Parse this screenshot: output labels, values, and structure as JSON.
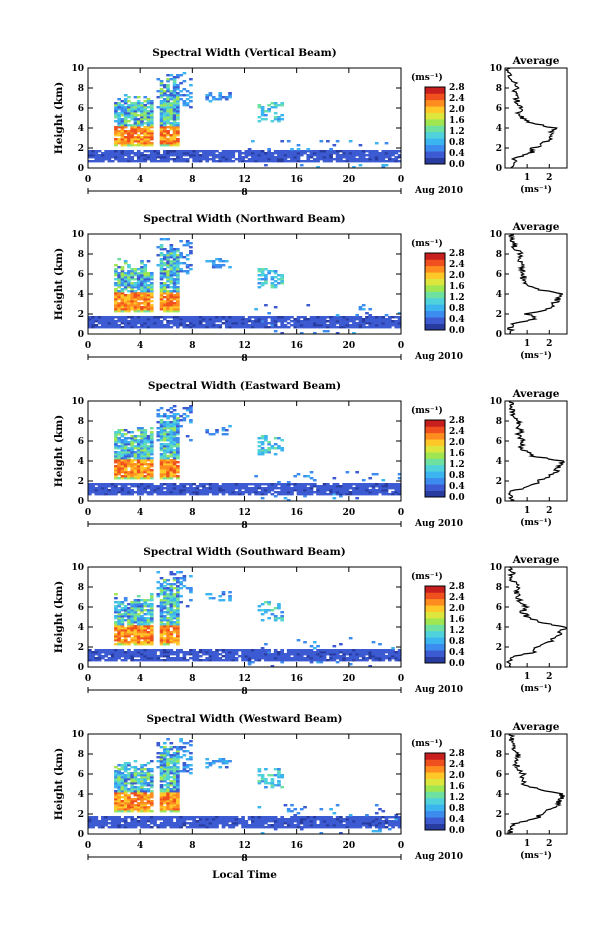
{
  "panels": [
    {
      "title": "Spectral Width (Vertical Beam)",
      "avg_xticks": [
        "1",
        "2"
      ]
    },
    {
      "title": "Spectral Width (Northward Beam)",
      "avg_xticks": [
        "1",
        "2"
      ]
    },
    {
      "title": "Spectral Width (Eastward Beam)",
      "avg_xticks": [
        "1",
        "2"
      ]
    },
    {
      "title": "Spectral Width (Southward Beam)",
      "avg_xticks": [
        "1",
        "2"
      ]
    },
    {
      "title": "Spectral Width (Westward Beam)",
      "avg_xticks": [
        "1",
        "2"
      ]
    }
  ],
  "labels": {
    "ylabel": "Height (km)",
    "colorbar_unit": "(ms⁻¹)",
    "avg_title": "Average",
    "avg_unit": "(ms⁻¹)",
    "date_label": "Aug 2010",
    "day_label": "8",
    "xlabel": "Local Time"
  },
  "colors": {
    "scale": [
      "#283ca0",
      "#3c5ad2",
      "#3c8cf0",
      "#3cb4f0",
      "#50d2dc",
      "#6ee0a0",
      "#a0e650",
      "#dce63c",
      "#ffc828",
      "#ff8c1e",
      "#f0501e",
      "#c81e1e"
    ]
  },
  "chart_data": {
    "type": "heatmap",
    "x_range": [
      0,
      24
    ],
    "y_range": [
      0,
      10
    ],
    "xticks": [
      "0",
      "4",
      "8",
      "12",
      "16",
      "20",
      "0"
    ],
    "yticks": [
      "0",
      "2",
      "4",
      "6",
      "8",
      "10"
    ],
    "colorbar_ticks": [
      "0.0",
      "0.4",
      "0.8",
      "1.2",
      "1.6",
      "2.0",
      "2.4",
      "2.8"
    ],
    "colorbar_range": [
      0,
      2.8
    ],
    "avg_profiles": [
      {
        "beam": "Vertical",
        "height_km": [
          0,
          0.5,
          1,
          1.5,
          2,
          2.5,
          3,
          3.5,
          4,
          4.5,
          5,
          5.5,
          6,
          6.5,
          7,
          7.5,
          8,
          8.5,
          9,
          9.5,
          10
        ],
        "width": [
          0.4,
          0.3,
          0.5,
          1.2,
          1.3,
          1.8,
          2.0,
          2.1,
          2.2,
          1.2,
          0.8,
          0.6,
          0.7,
          0.6,
          0.5,
          0.4,
          0.5,
          0.4,
          0.3,
          0.2,
          0.2
        ]
      },
      {
        "beam": "Northward",
        "height_km": [
          0,
          0.5,
          1,
          1.5,
          2,
          2.5,
          3,
          3.5,
          4,
          4.5,
          5,
          5.5,
          6,
          6.5,
          7,
          7.5,
          8,
          8.5,
          9,
          9.5,
          10
        ],
        "width": [
          0.3,
          0.2,
          0.4,
          1.4,
          1.0,
          1.9,
          2.2,
          2.4,
          2.6,
          1.4,
          0.9,
          0.8,
          0.9,
          0.7,
          0.8,
          0.6,
          0.7,
          0.5,
          0.4,
          0.3,
          0.3
        ]
      },
      {
        "beam": "Eastward",
        "height_km": [
          0,
          0.5,
          1,
          1.5,
          2,
          2.5,
          3,
          3.5,
          4,
          4.5,
          5,
          5.5,
          6,
          6.5,
          7,
          7.5,
          8,
          8.5,
          9,
          9.5,
          10
        ],
        "width": [
          0.3,
          0.2,
          0.3,
          1.2,
          1.5,
          2.0,
          2.3,
          2.5,
          2.6,
          1.3,
          0.9,
          0.7,
          0.8,
          0.6,
          0.7,
          0.5,
          0.6,
          0.4,
          0.3,
          0.3,
          0.2
        ]
      },
      {
        "beam": "Southward",
        "height_km": [
          0,
          0.5,
          1,
          1.5,
          2,
          2.5,
          3,
          3.5,
          4,
          4.5,
          5,
          5.5,
          6,
          6.5,
          7,
          7.5,
          8,
          8.5,
          9,
          9.5,
          10
        ],
        "width": [
          0.3,
          0.2,
          0.4,
          1.3,
          1.4,
          2.0,
          2.3,
          2.5,
          2.7,
          1.5,
          1.0,
          0.8,
          0.9,
          0.7,
          0.6,
          0.5,
          0.6,
          0.4,
          0.3,
          0.3,
          0.3
        ]
      },
      {
        "beam": "Westward",
        "height_km": [
          0,
          0.5,
          1,
          1.5,
          2,
          2.5,
          3,
          3.5,
          4,
          4.5,
          5,
          5.5,
          6,
          6.5,
          7,
          7.5,
          8,
          8.5,
          9,
          9.5,
          10
        ],
        "width": [
          0.3,
          0.2,
          0.4,
          1.4,
          1.6,
          2.1,
          2.4,
          2.5,
          2.6,
          1.4,
          0.9,
          0.7,
          0.8,
          0.6,
          0.5,
          0.5,
          0.6,
          0.4,
          0.3,
          0.3,
          0.2
        ]
      }
    ],
    "avg_x_range": [
      0,
      2.8
    ],
    "features": {
      "convective_cores": [
        {
          "time_hours": [
            2,
            5
          ],
          "height_km": [
            2,
            7.5
          ],
          "max_width": 2.8
        },
        {
          "time_hours": [
            5.5,
            7
          ],
          "height_km": [
            2,
            9
          ],
          "max_width": 2.8
        }
      ],
      "boundary_layer": {
        "time_hours": [
          0,
          24
        ],
        "height_km": [
          0.5,
          1.6
        ],
        "width": 0.2
      },
      "upper_patches": [
        {
          "time_hours": [
            13,
            15
          ],
          "height_km": [
            4.5,
            6.5
          ],
          "width": 1.2
        },
        {
          "time_hours": [
            9,
            11
          ],
          "height_km": [
            6.5,
            7.5
          ],
          "width": 0.8
        }
      ]
    }
  }
}
